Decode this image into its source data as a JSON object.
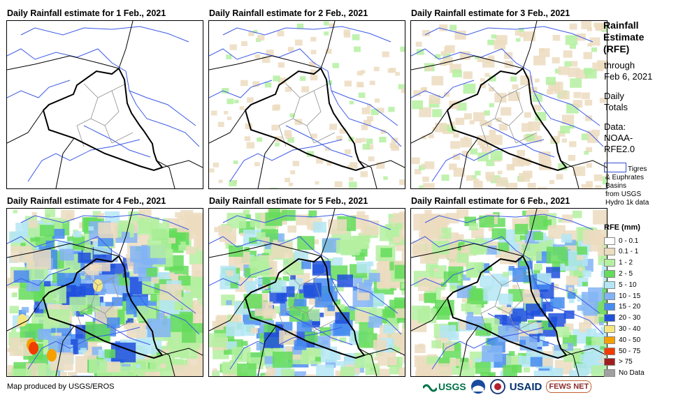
{
  "panels": [
    {
      "title": "Daily Rainfall estimate for 1 Feb., 2021",
      "intensity": 0
    },
    {
      "title": "Daily Rainfall estimate for 2 Feb., 2021",
      "intensity": 1
    },
    {
      "title": "Daily Rainfall estimate for 3 Feb., 2021",
      "intensity": 2
    },
    {
      "title": "Daily Rainfall estimate for 4 Feb., 2021",
      "intensity": 5
    },
    {
      "title": "Daily Rainfall estimate for 5 Feb., 2021",
      "intensity": 4
    },
    {
      "title": "Daily Rainfall estimate for 6 Feb., 2021",
      "intensity": 4
    }
  ],
  "sidebar": {
    "title_line1": "Rainfall",
    "title_line2": "Estimate",
    "title_line3": "(RFE)",
    "through": "through",
    "date": "Feb 6, 2021",
    "daily": "Daily",
    "totals": "Totals",
    "data_label": "Data:",
    "data_src1": "NOAA-",
    "data_src2": "RFE2.0",
    "basin_line1": "Tigres",
    "basin_line2": "& Euphrates",
    "basin_line3": "Basins",
    "basin_line4": "from USGS",
    "basin_line5": "Hydro 1k data",
    "rfe_title": "RFE (mm)"
  },
  "legend": [
    {
      "label": "0 - 0.1",
      "color": "#ffffff"
    },
    {
      "label": "0.1 - 1",
      "color": "#ecdcbf"
    },
    {
      "label": "1 - 2",
      "color": "#b4f0a0"
    },
    {
      "label": "2 - 5",
      "color": "#64dc5a"
    },
    {
      "label": "5 - 10",
      "color": "#b4e6f5"
    },
    {
      "label": "10 - 15",
      "color": "#82b4f5"
    },
    {
      "label": "15 - 20",
      "color": "#468cf0"
    },
    {
      "label": "20 - 30",
      "color": "#1e50dc"
    },
    {
      "label": "30 - 40",
      "color": "#f5e682"
    },
    {
      "label": "40 - 50",
      "color": "#f5a000"
    },
    {
      "label": "50 - 75",
      "color": "#f03c00"
    },
    {
      "label": "> 75",
      "color": "#a01e1e"
    },
    {
      "label": "No Data",
      "color": "#a0a0a0"
    }
  ],
  "footer": {
    "text": "Map produced by USGS/EROS"
  },
  "logos": {
    "usgs": "USGS",
    "usaid": "USAID",
    "fews": "FEWS NET"
  }
}
